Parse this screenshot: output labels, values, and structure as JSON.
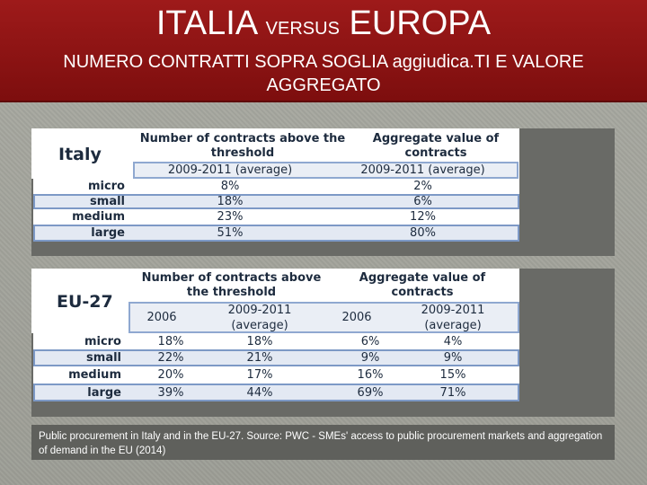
{
  "header": {
    "title_a": "ITALIA",
    "title_versus": "VERSUS",
    "title_b": "EUROPA",
    "subtitle": "NUMERO CONTRATTI SOPRA SOGLIA aggiudica.TI E VALORE AGGREGATO"
  },
  "italy": {
    "label": "Italy",
    "col1_header": "Number of contracts above the threshold",
    "col2_header": "Aggregate value of contracts",
    "col1_sub": "2009-2011 (average)",
    "col2_sub": "2009-2011 (average)",
    "rows": [
      {
        "label": "micro",
        "contracts": "8%",
        "value": "2%"
      },
      {
        "label": "small",
        "contracts": "18%",
        "value": "6%"
      },
      {
        "label": "medium",
        "contracts": "23%",
        "value": "12%"
      },
      {
        "label": "large",
        "contracts": "51%",
        "value": "80%"
      }
    ]
  },
  "eu27": {
    "label": "EU-27",
    "col1_header": "Number of contracts above the threshold",
    "col2_header": "Aggregate value of contracts",
    "sub_2006": "2006",
    "sub_avg": "2009-2011 (average)",
    "rows": [
      {
        "label": "micro",
        "c2006": "18%",
        "cavg": "18%",
        "v2006": "6%",
        "vavg": "4%"
      },
      {
        "label": "small",
        "c2006": "22%",
        "cavg": "21%",
        "v2006": "9%",
        "vavg": "9%"
      },
      {
        "label": "medium",
        "c2006": "20%",
        "cavg": "17%",
        "v2006": "16%",
        "vavg": "15%"
      },
      {
        "label": "large",
        "c2006": "39%",
        "cavg": "44%",
        "v2006": "69%",
        "vavg": "71%"
      }
    ]
  },
  "caption": "Public procurement in Italy and in the EU-27. Source: PWC -  SMEs' access to public procurement markets and aggregation of demand in the EU (2014)"
}
